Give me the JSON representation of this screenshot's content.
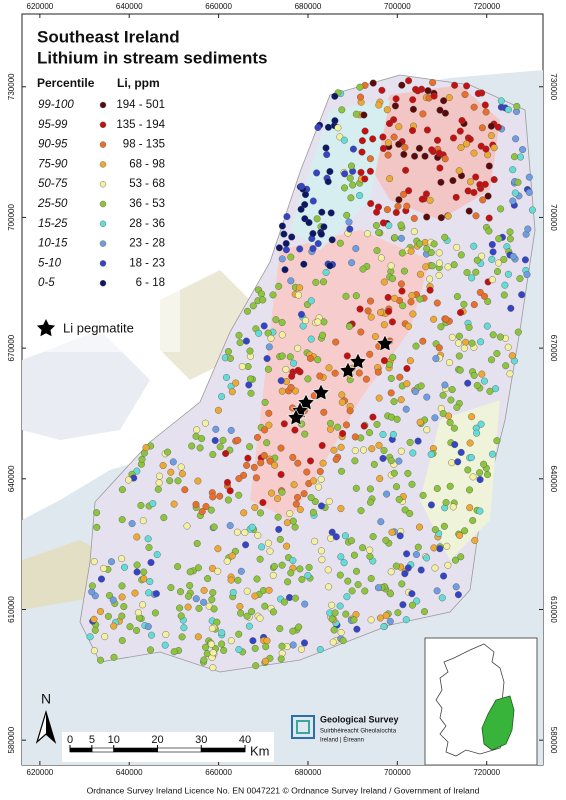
{
  "map": {
    "title": "Southeast Ireland",
    "subtitle": "Lithium in stream sediments",
    "xlim": [
      616000,
      732600
    ],
    "ylim": [
      574300,
      746700
    ],
    "xticks": [
      620000,
      640000,
      660000,
      680000,
      700000,
      720000
    ],
    "yticks": [
      580000,
      610000,
      640000,
      670000,
      700000,
      730000
    ]
  },
  "legend": {
    "headers": [
      "Percentile",
      "Li, ppm"
    ],
    "classes": [
      {
        "percentile": "99-100",
        "range": "194 - 501",
        "color": "#5a0a0a"
      },
      {
        "percentile": "95-99",
        "range": "135 - 194",
        "color": "#c41010"
      },
      {
        "percentile": "90-95",
        "range": "98 - 135",
        "color": "#e8702a"
      },
      {
        "percentile": "75-90",
        "range": "68 - 98",
        "color": "#eea934"
      },
      {
        "percentile": "50-75",
        "range": "53 - 68",
        "color": "#f4f0a0"
      },
      {
        "percentile": "25-50",
        "range": "36 - 53",
        "color": "#8cc43c"
      },
      {
        "percentile": "15-25",
        "range": "28 - 36",
        "color": "#63dcd8"
      },
      {
        "percentile": "10-15",
        "range": "23 - 28",
        "color": "#6f9de2"
      },
      {
        "percentile": "5-10",
        "range": "18 - 23",
        "color": "#3444c6"
      },
      {
        "percentile": "0-5",
        "range": "6 - 18",
        "color": "#0b1868"
      }
    ],
    "pegmatite": "Li pegmatite"
  },
  "scale_bar": {
    "ticks": [
      0,
      5,
      10,
      20,
      30,
      40
    ],
    "unit": "Km"
  },
  "north": "N",
  "logo": {
    "name": "Geological Survey",
    "irish": "Suirbhéireacht Gheolaíochta",
    "place": "Ireland | Éireann"
  },
  "footer": "Ordnance Survey Ireland Licence No. EN 0047221 © Ordnance Survey Ireland / Government of Ireland"
}
